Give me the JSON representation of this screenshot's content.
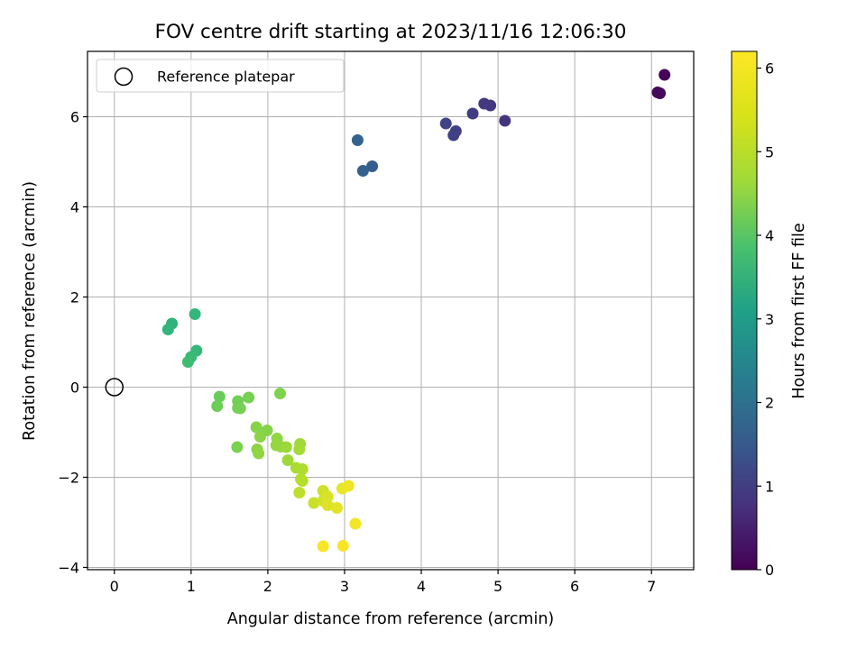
{
  "chart_data": {
    "type": "scatter",
    "title": "FOV centre drift starting at 2023/11/16 12:06:30",
    "xlabel": "Angular distance from reference (arcmin)",
    "ylabel": "Rotation from reference (arcmin)",
    "xlim": [
      -0.35,
      7.55
    ],
    "ylim": [
      -4.05,
      7.45
    ],
    "xticks": [
      0,
      1,
      2,
      3,
      4,
      5,
      6,
      7
    ],
    "yticks": [
      -4,
      -2,
      0,
      2,
      4,
      6
    ],
    "xtick_labels": [
      "0",
      "1",
      "2",
      "3",
      "4",
      "5",
      "6",
      "7"
    ],
    "ytick_labels": [
      "−4",
      "−2",
      "0",
      "2",
      "4",
      "6"
    ],
    "grid": true,
    "legend": {
      "location": "upper-left",
      "entries": [
        "Reference platepar"
      ]
    },
    "colorbar": {
      "label": "Hours from first FF file",
      "colormap": "viridis",
      "range": [
        0,
        6.2
      ],
      "ticks": [
        0,
        1,
        2,
        3,
        4,
        5,
        6
      ],
      "tick_labels": [
        "0",
        "1",
        "2",
        "3",
        "4",
        "5",
        "6"
      ]
    },
    "reference_point": {
      "x": 0,
      "y": 0,
      "marker": "open-circle"
    },
    "series": [
      {
        "name": "Reference platepar",
        "points": [
          {
            "x": 0,
            "y": 0
          }
        ]
      },
      {
        "points": [
          {
            "x": 7.17,
            "y": 6.93,
            "c": 0.05
          },
          {
            "x": 7.08,
            "y": 6.54,
            "c": 0.1
          },
          {
            "x": 7.11,
            "y": 6.52,
            "c": 0.15
          },
          {
            "x": 5.09,
            "y": 5.91,
            "c": 0.95
          },
          {
            "x": 4.9,
            "y": 6.25,
            "c": 1.0
          },
          {
            "x": 4.82,
            "y": 6.29,
            "c": 1.05
          },
          {
            "x": 4.67,
            "y": 6.07,
            "c": 1.1
          },
          {
            "x": 4.45,
            "y": 5.68,
            "c": 1.15
          },
          {
            "x": 4.42,
            "y": 5.59,
            "c": 1.2
          },
          {
            "x": 4.32,
            "y": 5.85,
            "c": 1.25
          },
          {
            "x": 3.36,
            "y": 4.9,
            "c": 1.85
          },
          {
            "x": 3.24,
            "y": 4.8,
            "c": 1.9
          },
          {
            "x": 3.17,
            "y": 5.48,
            "c": 1.95
          },
          {
            "x": 0.75,
            "y": 1.41,
            "c": 4.0
          },
          {
            "x": 0.7,
            "y": 1.28,
            "c": 4.05
          },
          {
            "x": 1.05,
            "y": 1.62,
            "c": 4.1
          },
          {
            "x": 1.07,
            "y": 0.81,
            "c": 4.15
          },
          {
            "x": 1.0,
            "y": 0.67,
            "c": 4.2
          },
          {
            "x": 0.96,
            "y": 0.56,
            "c": 4.25
          },
          {
            "x": 1.37,
            "y": -0.21,
            "c": 4.75
          },
          {
            "x": 1.34,
            "y": -0.42,
            "c": 4.8
          },
          {
            "x": 1.61,
            "y": -0.31,
            "c": 4.85
          },
          {
            "x": 1.61,
            "y": -0.46,
            "c": 4.85
          },
          {
            "x": 1.64,
            "y": -0.47,
            "c": 4.9
          },
          {
            "x": 1.75,
            "y": -0.23,
            "c": 4.9
          },
          {
            "x": 1.6,
            "y": -1.33,
            "c": 4.95
          },
          {
            "x": 2.16,
            "y": -0.14,
            "c": 5.0
          },
          {
            "x": 1.85,
            "y": -0.89,
            "c": 5.05
          },
          {
            "x": 1.99,
            "y": -0.96,
            "c": 5.05
          },
          {
            "x": 1.9,
            "y": -1.1,
            "c": 5.1
          },
          {
            "x": 1.86,
            "y": -1.38,
            "c": 5.1
          },
          {
            "x": 1.88,
            "y": -1.47,
            "c": 5.15
          },
          {
            "x": 2.12,
            "y": -1.14,
            "c": 5.15
          },
          {
            "x": 2.11,
            "y": -1.29,
            "c": 5.2
          },
          {
            "x": 2.17,
            "y": -1.32,
            "c": 5.2
          },
          {
            "x": 2.24,
            "y": -1.33,
            "c": 5.25
          },
          {
            "x": 2.26,
            "y": -1.62,
            "c": 5.3
          },
          {
            "x": 2.42,
            "y": -1.26,
            "c": 5.3
          },
          {
            "x": 2.41,
            "y": -1.38,
            "c": 5.35
          },
          {
            "x": 2.37,
            "y": -1.79,
            "c": 5.4
          },
          {
            "x": 2.45,
            "y": -1.82,
            "c": 5.45
          },
          {
            "x": 2.43,
            "y": -2.04,
            "c": 5.5
          },
          {
            "x": 2.45,
            "y": -2.08,
            "c": 5.5
          },
          {
            "x": 2.41,
            "y": -2.34,
            "c": 5.6
          },
          {
            "x": 2.6,
            "y": -2.57,
            "c": 5.7
          },
          {
            "x": 2.72,
            "y": -2.3,
            "c": 5.75
          },
          {
            "x": 2.72,
            "y": -2.52,
            "c": 5.8
          },
          {
            "x": 2.78,
            "y": -2.43,
            "c": 5.85
          },
          {
            "x": 2.78,
            "y": -2.62,
            "c": 5.9
          },
          {
            "x": 2.9,
            "y": -2.68,
            "c": 5.95
          },
          {
            "x": 2.97,
            "y": -2.25,
            "c": 6.0
          },
          {
            "x": 3.05,
            "y": -2.19,
            "c": 6.05
          },
          {
            "x": 3.14,
            "y": -3.03,
            "c": 6.1
          },
          {
            "x": 2.72,
            "y": -3.53,
            "c": 6.15
          },
          {
            "x": 2.98,
            "y": -3.52,
            "c": 6.15
          }
        ]
      }
    ]
  }
}
